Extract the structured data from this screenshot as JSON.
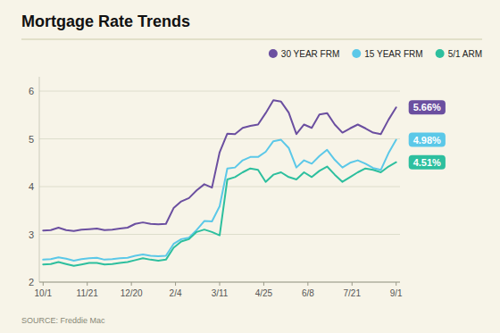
{
  "chart_data": {
    "type": "line",
    "title": "Mortgage Rate Trends",
    "annotations": [
      "SOURCE: Freddie Mac"
    ],
    "x": [
      0,
      1,
      2,
      3,
      4,
      5,
      6,
      7,
      8,
      9,
      10,
      11,
      12,
      13,
      14,
      15,
      16,
      17,
      18,
      19,
      20,
      21,
      22,
      23,
      24,
      25,
      26,
      27,
      28,
      29,
      30,
      31,
      32,
      33,
      34,
      35,
      36,
      37,
      38,
      39,
      40,
      41,
      42,
      43,
      44,
      45,
      46
    ],
    "xlim": [
      -0.5,
      46.5
    ],
    "xticks": [
      {
        "value": 0,
        "label": "10/1"
      },
      {
        "value": 5.75,
        "label": "11/21"
      },
      {
        "value": 11.5,
        "label": "12/20"
      },
      {
        "value": 17.25,
        "label": "2/4"
      },
      {
        "value": 23,
        "label": "3/11"
      },
      {
        "value": 28.75,
        "label": "4/25"
      },
      {
        "value": 34.5,
        "label": "6/8"
      },
      {
        "value": 40.25,
        "label": "7/21"
      },
      {
        "value": 46,
        "label": "9/1"
      }
    ],
    "ylim": [
      2.0,
      6.3
    ],
    "yticks": [
      2,
      3,
      4,
      5,
      6
    ],
    "grid": true,
    "legend": "top-right",
    "series": [
      {
        "name": "30 YEAR FRM",
        "color": "#6b4fa0",
        "end_label": "5.66%",
        "values": [
          3.08,
          3.09,
          3.14,
          3.09,
          3.07,
          3.1,
          3.11,
          3.12,
          3.09,
          3.1,
          3.12,
          3.14,
          3.22,
          3.25,
          3.22,
          3.21,
          3.22,
          3.55,
          3.69,
          3.76,
          3.92,
          4.05,
          3.98,
          4.72,
          5.11,
          5.1,
          5.23,
          5.27,
          5.3,
          5.54,
          5.81,
          5.78,
          5.55,
          5.1,
          5.3,
          5.23,
          5.51,
          5.54,
          5.3,
          5.13,
          5.22,
          5.3,
          5.22,
          5.13,
          5.1,
          5.4,
          5.66
        ]
      },
      {
        "name": "15 YEAR FRM",
        "color": "#5bc8e8",
        "end_label": "4.98%",
        "values": [
          2.47,
          2.48,
          2.52,
          2.49,
          2.45,
          2.48,
          2.5,
          2.51,
          2.47,
          2.48,
          2.5,
          2.51,
          2.55,
          2.58,
          2.55,
          2.54,
          2.55,
          2.8,
          2.9,
          2.93,
          3.09,
          3.28,
          3.27,
          3.59,
          4.38,
          4.4,
          4.55,
          4.62,
          4.62,
          4.73,
          4.95,
          4.98,
          4.81,
          4.4,
          4.55,
          4.48,
          4.64,
          4.77,
          4.56,
          4.4,
          4.5,
          4.55,
          4.48,
          4.39,
          4.35,
          4.7,
          4.98
        ]
      },
      {
        "name": "5/1 ARM",
        "color": "#2dbf9e",
        "end_label": "4.51%",
        "values": [
          2.37,
          2.38,
          2.42,
          2.38,
          2.34,
          2.37,
          2.4,
          2.4,
          2.37,
          2.38,
          2.4,
          2.42,
          2.46,
          2.5,
          2.47,
          2.45,
          2.47,
          2.72,
          2.85,
          2.9,
          3.05,
          3.1,
          3.05,
          2.98,
          4.15,
          4.2,
          4.3,
          4.38,
          4.35,
          4.1,
          4.25,
          4.3,
          4.2,
          4.15,
          4.3,
          4.2,
          4.33,
          4.42,
          4.25,
          4.1,
          4.2,
          4.3,
          4.38,
          4.35,
          4.3,
          4.42,
          4.51
        ]
      }
    ]
  }
}
